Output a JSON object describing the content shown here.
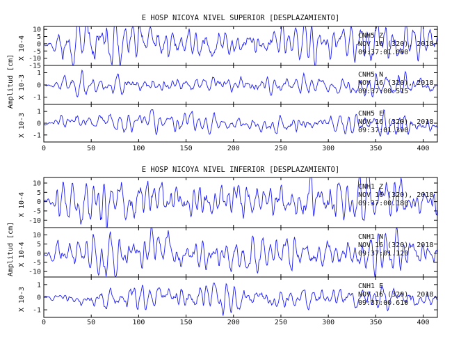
{
  "chart_data": [
    {
      "type": "line",
      "title": "E HOSP NICOYA NIVEL SUPERIOR [DESPLAZAMIENTO]",
      "ylabel": "Amplitud [cm]",
      "xlim": [
        0,
        415
      ],
      "x_ticks": [
        "0",
        "50",
        "100",
        "150",
        "200",
        "250",
        "300",
        "350",
        "400"
      ],
      "panels": [
        {
          "channel": "CNH5 Z",
          "date": "NOV 16 (320), 2018",
          "time": "09:37:01.000",
          "scale": "X 10-4",
          "y_ticks": [
            "10",
            "5",
            "0",
            "-5",
            "-10",
            "-15"
          ],
          "ylim": [
            -15,
            12
          ],
          "seed": 11,
          "amp": 11,
          "drift": 2,
          "envelope": [
            [
              0,
              0.2
            ],
            [
              8,
              0.3
            ],
            [
              15,
              0.85
            ],
            [
              25,
              1.1
            ],
            [
              60,
              1.2
            ],
            [
              75,
              1.3
            ],
            [
              110,
              1.15
            ],
            [
              130,
              0.9
            ],
            [
              170,
              0.75
            ],
            [
              220,
              0.7
            ],
            [
              300,
              0.95
            ],
            [
              340,
              1.0
            ],
            [
              360,
              1.2
            ],
            [
              395,
              1.0
            ],
            [
              415,
              0.7
            ]
          ]
        },
        {
          "channel": "CNH5 N",
          "date": "NOV 16 (320), 2018",
          "time": "09:37:00.515",
          "scale": "X 10-3",
          "y_ticks": [
            "1",
            "0",
            "-1"
          ],
          "ylim": [
            -1.6,
            1.6
          ],
          "seed": 23,
          "amp": 0.85,
          "drift": 0.2,
          "envelope": [
            [
              0,
              0.2
            ],
            [
              10,
              0.3
            ],
            [
              15,
              0.8
            ],
            [
              30,
              0.9
            ],
            [
              60,
              1.0
            ],
            [
              100,
              0.85
            ],
            [
              150,
              0.7
            ],
            [
              180,
              0.8
            ],
            [
              230,
              1.0
            ],
            [
              260,
              0.75
            ],
            [
              300,
              0.8
            ],
            [
              345,
              1.0
            ],
            [
              365,
              1.25
            ],
            [
              395,
              1.0
            ],
            [
              415,
              0.6
            ]
          ]
        },
        {
          "channel": "CNH5 E",
          "date": "NOV 16 (320), 2018",
          "time": "09:37:01.390",
          "scale": "X 10-3",
          "y_ticks": [
            "1",
            "0",
            "-1"
          ],
          "ylim": [
            -1.6,
            1.6
          ],
          "seed": 37,
          "amp": 0.8,
          "drift": 0.25,
          "envelope": [
            [
              0,
              0.2
            ],
            [
              12,
              0.3
            ],
            [
              18,
              0.7
            ],
            [
              40,
              0.9
            ],
            [
              60,
              0.9
            ],
            [
              100,
              0.75
            ],
            [
              150,
              0.95
            ],
            [
              200,
              0.7
            ],
            [
              240,
              0.9
            ],
            [
              300,
              0.85
            ],
            [
              350,
              1.0
            ],
            [
              375,
              1.35
            ],
            [
              400,
              1.0
            ],
            [
              415,
              0.6
            ]
          ]
        }
      ]
    },
    {
      "type": "line",
      "title": "E HOSP NICOYA NIVEL INFERIOR [DESPLAZAMIENTO]",
      "ylabel": "Amplitud [cm]",
      "xlim": [
        0,
        415
      ],
      "x_ticks": [
        "0",
        "50",
        "100",
        "150",
        "200",
        "250",
        "300",
        "350",
        "400"
      ],
      "panels": [
        {
          "channel": "CNH1 Z",
          "date": "NOV 16 (320), 2018",
          "time": "09:37:00.180",
          "scale": "X 10-4",
          "y_ticks": [
            "10",
            "5",
            "0",
            "-5",
            "-10"
          ],
          "ylim": [
            -14,
            13
          ],
          "seed": 51,
          "amp": 10,
          "drift": 1.5,
          "envelope": [
            [
              0,
              0.2
            ],
            [
              10,
              0.3
            ],
            [
              15,
              0.8
            ],
            [
              40,
              1.1
            ],
            [
              90,
              1.2
            ],
            [
              120,
              1.0
            ],
            [
              150,
              0.85
            ],
            [
              190,
              1.15
            ],
            [
              240,
              0.9
            ],
            [
              290,
              1.1
            ],
            [
              330,
              1.05
            ],
            [
              360,
              1.15
            ],
            [
              395,
              0.9
            ],
            [
              415,
              0.7
            ]
          ]
        },
        {
          "channel": "CNH1 N",
          "date": "NOV 16 (320), 2018",
          "time": "09:37:01.120",
          "scale": "X 10-4",
          "y_ticks": [
            "10",
            "5",
            "0",
            "-5",
            "-10"
          ],
          "ylim": [
            -13,
            14
          ],
          "seed": 67,
          "amp": 9.5,
          "drift": 1.5,
          "envelope": [
            [
              0,
              0.2
            ],
            [
              10,
              0.3
            ],
            [
              15,
              0.8
            ],
            [
              40,
              0.95
            ],
            [
              60,
              1.2
            ],
            [
              110,
              1.05
            ],
            [
              160,
              0.85
            ],
            [
              200,
              0.95
            ],
            [
              235,
              1.3
            ],
            [
              270,
              1.0
            ],
            [
              310,
              0.95
            ],
            [
              345,
              1.0
            ],
            [
              380,
              0.85
            ],
            [
              415,
              0.7
            ]
          ]
        },
        {
          "channel": "CNH1 E",
          "date": "NOV 16 (320), 2018",
          "time": "09:37:00.610",
          "scale": "X 10-3",
          "y_ticks": [
            "1",
            "0",
            "-1"
          ],
          "ylim": [
            -1.6,
            1.6
          ],
          "seed": 83,
          "amp": 0.75,
          "drift": 0.2,
          "envelope": [
            [
              0,
              0.15
            ],
            [
              15,
              0.2
            ],
            [
              25,
              0.45
            ],
            [
              50,
              0.7
            ],
            [
              80,
              0.95
            ],
            [
              100,
              1.2
            ],
            [
              150,
              1.05
            ],
            [
              170,
              1.35
            ],
            [
              200,
              1.15
            ],
            [
              250,
              0.9
            ],
            [
              300,
              0.8
            ],
            [
              345,
              0.95
            ],
            [
              380,
              1.05
            ],
            [
              415,
              0.6
            ]
          ]
        }
      ]
    }
  ]
}
